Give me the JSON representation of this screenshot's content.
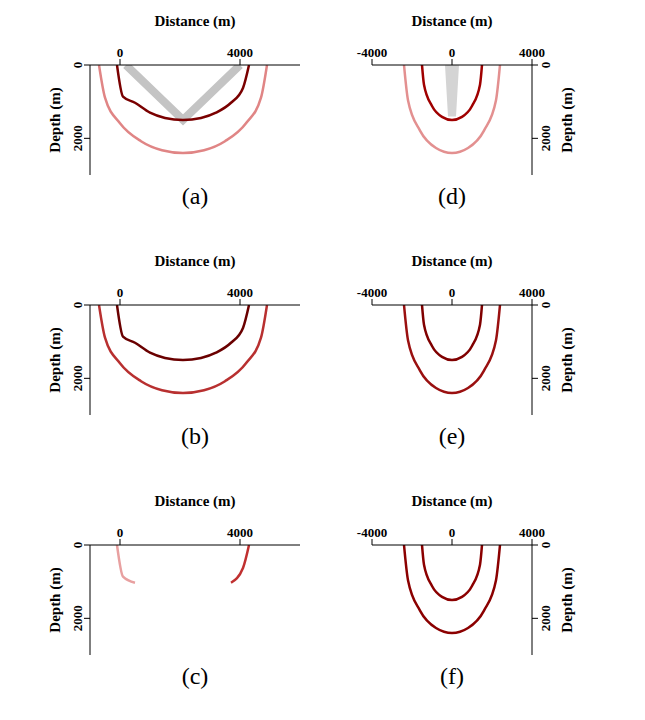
{
  "chart_data": [
    {
      "type": "line",
      "title": "(a)",
      "xlabel": "Distance (m)",
      "ylabel": "Depth (m)",
      "xlim": [
        -1000,
        6000
      ],
      "ylim": [
        0,
        3000
      ],
      "xticks": [
        0,
        4000
      ],
      "yticks": [
        0,
        2000
      ],
      "series": [
        {
          "color": "#c4c4c4",
          "line_style": "thick",
          "x": [
            200,
            2100,
            4000
          ],
          "values": [
            0,
            1500,
            0
          ]
        },
        {
          "color": "#e08585",
          "line_style": "solid",
          "x": [
            -700,
            -500,
            0,
            700,
            1400,
            2100,
            2800,
            3500,
            4200,
            4700,
            4900
          ],
          "values": [
            0,
            891,
            1587,
            2078,
            2324,
            2400,
            2324,
            2078,
            1587,
            891,
            0
          ]
        },
        {
          "color": "#7a0000",
          "line_style": "solid",
          "x": [
            -100,
            100,
            500,
            1000,
            1500,
            2100,
            2700,
            3200,
            3700,
            4100,
            4300
          ],
          "values": [
            0,
            863,
            1030,
            1300,
            1443,
            1500,
            1443,
            1300,
            1030,
            626,
            0
          ]
        }
      ]
    },
    {
      "type": "line",
      "title": "(b)",
      "xlabel": "Distance (m)",
      "ylabel": "Depth (m)",
      "xlim": [
        -1000,
        6000
      ],
      "ylim": [
        0,
        3000
      ],
      "xticks": [
        0,
        4000
      ],
      "yticks": [
        0,
        2000
      ],
      "series": [
        {
          "color": "#b83030",
          "line_style": "solid",
          "x": [
            -700,
            -500,
            0,
            700,
            1400,
            2100,
            2800,
            3500,
            4200,
            4700,
            4900
          ],
          "values": [
            0,
            891,
            1587,
            2078,
            2324,
            2400,
            2324,
            2078,
            1587,
            891,
            0
          ]
        },
        {
          "color": "#6a0000",
          "line_style": "solid",
          "x": [
            -100,
            100,
            500,
            1000,
            1500,
            2100,
            2700,
            3200,
            3700,
            4100,
            4300
          ],
          "values": [
            0,
            863,
            1030,
            1300,
            1443,
            1500,
            1443,
            1300,
            1030,
            626,
            0
          ]
        }
      ]
    },
    {
      "type": "line",
      "title": "(c)",
      "xlabel": "Distance (m)",
      "ylabel": "Depth (m)",
      "xlim": [
        -1000,
        6000
      ],
      "ylim": [
        0,
        3000
      ],
      "xticks": [
        0,
        4000
      ],
      "yticks": [
        0,
        2000
      ],
      "series": [
        {
          "color": "#e8a0a0",
          "line_style": "solid",
          "x": [
            -100,
            100,
            500
          ],
          "values": [
            0,
            863,
            1030
          ]
        },
        {
          "color": "#c03030",
          "line_style": "solid",
          "x": [
            3700,
            4100,
            4300
          ],
          "values": [
            1030,
            626,
            0
          ]
        }
      ]
    },
    {
      "type": "line",
      "title": "(d)",
      "xlabel": "Distance (m)",
      "ylabel": "Depth (m)",
      "xlim": [
        -4000,
        4000
      ],
      "ylim": [
        0,
        3000
      ],
      "xticks": [
        -4000,
        0,
        4000
      ],
      "yticks": [
        0,
        2000
      ],
      "series": [
        {
          "color": "#d4d4d4",
          "line_style": "thick",
          "x": [
            -150,
            0,
            150
          ],
          "values": [
            0,
            1400,
            0
          ]
        },
        {
          "color": "#e39090",
          "line_style": "solid",
          "x": [
            -2400,
            -2200,
            -1600,
            -800,
            0,
            800,
            1600,
            2200,
            2400
          ],
          "values": [
            0,
            960,
            1789,
            2263,
            2400,
            2263,
            1789,
            960,
            0
          ]
        },
        {
          "color": "#a00000",
          "line_style": "solid",
          "x": [
            -1500,
            -1400,
            -1000,
            -500,
            0,
            500,
            1000,
            1400,
            1500
          ],
          "values": [
            0,
            538,
            1118,
            1414,
            1500,
            1414,
            1118,
            538,
            0
          ]
        }
      ]
    },
    {
      "type": "line",
      "title": "(e)",
      "xlabel": "Distance (m)",
      "ylabel": "Depth (m)",
      "xlim": [
        -4000,
        4000
      ],
      "ylim": [
        0,
        3000
      ],
      "xticks": [
        -4000,
        0,
        4000
      ],
      "yticks": [
        0,
        2000
      ],
      "series": [
        {
          "color": "#9a1010",
          "line_style": "solid",
          "x": [
            -2400,
            -2200,
            -1600,
            -800,
            0,
            800,
            1600,
            2200,
            2400
          ],
          "values": [
            0,
            960,
            1789,
            2263,
            2400,
            2263,
            1789,
            960,
            0
          ]
        },
        {
          "color": "#800000",
          "line_style": "solid",
          "x": [
            -1500,
            -1400,
            -1000,
            -500,
            0,
            500,
            1000,
            1400,
            1500
          ],
          "values": [
            0,
            538,
            1118,
            1414,
            1500,
            1414,
            1118,
            538,
            0
          ]
        }
      ]
    },
    {
      "type": "line",
      "title": "(f)",
      "xlabel": "Distance (m)",
      "ylabel": "Depth (m)",
      "xlim": [
        -4000,
        4000
      ],
      "ylim": [
        0,
        3000
      ],
      "xticks": [
        -4000,
        0,
        4000
      ],
      "yticks": [
        0,
        2000
      ],
      "series": [
        {
          "color": "#8b0000",
          "line_style": "solid",
          "x": [
            -2400,
            -2200,
            -1600,
            -800,
            0,
            800,
            1600,
            2200,
            2400
          ],
          "values": [
            0,
            960,
            1789,
            2263,
            2400,
            2263,
            1789,
            960,
            0
          ]
        },
        {
          "color": "#8b0000",
          "line_style": "solid",
          "x": [
            -1500,
            -1400,
            -1000,
            -500,
            0,
            500,
            1000,
            1400,
            1500
          ],
          "values": [
            0,
            538,
            1118,
            1414,
            1500,
            1414,
            1118,
            538,
            0
          ]
        }
      ]
    }
  ]
}
